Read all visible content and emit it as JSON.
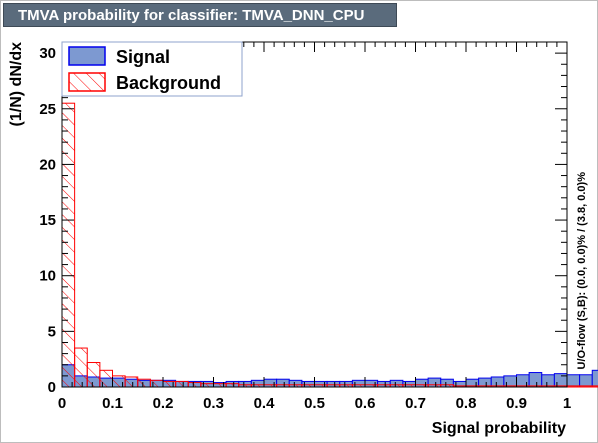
{
  "header": {
    "title": "TMVA probability for classifier: TMVA_DNN_CPU"
  },
  "chart_data": {
    "type": "bar",
    "title": "TMVA probability for classifier: TMVA_DNN_CPU",
    "xlabel": "Signal probability",
    "ylabel": "(1/N) dN/dx",
    "side_label": "U/O-flow (S,B): (0.0, 0.0)% / (3.8, 0.0)%",
    "xlim": [
      0,
      1
    ],
    "ylim": [
      0,
      31
    ],
    "bin_width": 0.025,
    "x_ticks": [
      "0",
      "0.1",
      "0.2",
      "0.3",
      "0.4",
      "0.5",
      "0.6",
      "0.7",
      "0.8",
      "0.9",
      "1"
    ],
    "y_ticks": [
      "0",
      "5",
      "10",
      "15",
      "20",
      "25",
      "30"
    ],
    "x_tick_values": [
      0,
      0.1,
      0.2,
      0.3,
      0.4,
      0.5,
      0.6,
      0.7,
      0.8,
      0.9,
      1.0
    ],
    "y_tick_values": [
      0,
      5,
      10,
      15,
      20,
      25,
      30
    ],
    "series": [
      {
        "name": "Signal",
        "fill": "#7d99d1",
        "stroke": "#0000ee",
        "style": "solid",
        "values": [
          2.0,
          1.0,
          0.9,
          0.8,
          0.8,
          0.7,
          0.6,
          0.6,
          0.6,
          0.5,
          0.5,
          0.5,
          0.4,
          0.5,
          0.5,
          0.6,
          0.7,
          0.7,
          0.6,
          0.5,
          0.5,
          0.5,
          0.5,
          0.6,
          0.6,
          0.5,
          0.6,
          0.5,
          0.7,
          0.8,
          0.7,
          0.5,
          0.7,
          0.8,
          0.9,
          1.0,
          1.1,
          1.3,
          1.1,
          1.2,
          1.1,
          1.1,
          1.5,
          1.6,
          1.2,
          2.0,
          3.0,
          1.5,
          2.5,
          4.0
        ]
      },
      {
        "name": "Background",
        "fill": "none",
        "stroke": "#ff0000",
        "style": "hatched",
        "values": [
          25.5,
          3.5,
          2.2,
          1.5,
          1.0,
          0.9,
          0.7,
          0.6,
          0.5,
          0.5,
          0.4,
          0.3,
          0.3,
          0.3,
          0.2,
          0.2,
          0.2,
          0.2,
          0.2,
          0.2,
          0.2,
          0.2,
          0.2,
          0.2,
          0.2,
          0.2,
          0.2,
          0.2,
          0.2,
          0.2,
          0.2,
          0.1,
          0.1,
          0.1,
          0.1,
          0.1,
          0.1,
          0.1,
          0.1,
          0.1,
          0.1,
          0.1,
          0.1,
          0.1,
          0.1,
          0.1,
          0.1,
          0.1,
          0.1,
          0.1
        ]
      }
    ],
    "legend_position": "top-left"
  }
}
